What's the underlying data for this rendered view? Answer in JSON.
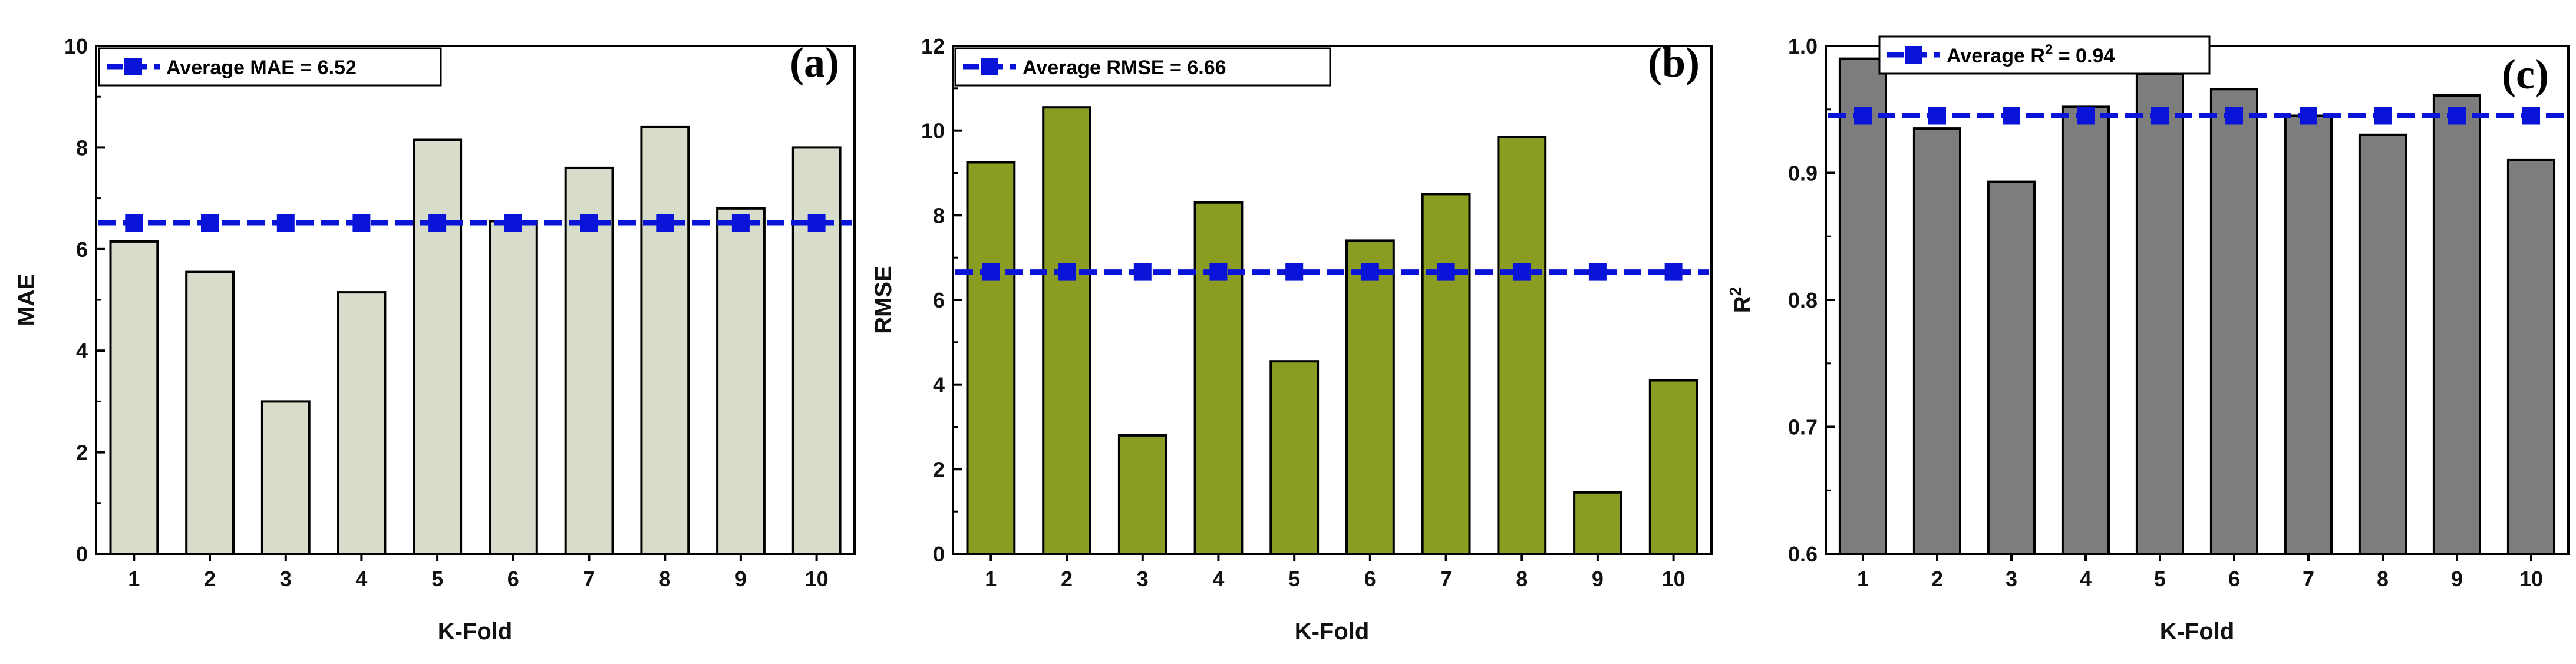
{
  "chart_data": [
    {
      "type": "bar",
      "panel_label": "(a)",
      "categories": [
        "1",
        "2",
        "3",
        "4",
        "5",
        "6",
        "7",
        "8",
        "9",
        "10"
      ],
      "values": [
        6.15,
        5.55,
        3.0,
        5.15,
        8.15,
        6.55,
        7.6,
        8.4,
        6.8,
        8.0
      ],
      "bar_color": "#d8dccb",
      "average": {
        "value": 6.52,
        "legend_text": "Average MAE = 6.52",
        "color": "#0a14d8"
      },
      "xlabel": "K-Fold",
      "ylabel": "MAE",
      "ylim": [
        0,
        10
      ],
      "yticks": [
        "0",
        "2",
        "4",
        "6",
        "8",
        "10"
      ],
      "legend_position": "top-left",
      "grid": false
    },
    {
      "type": "bar",
      "panel_label": "(b)",
      "categories": [
        "1",
        "2",
        "3",
        "4",
        "5",
        "6",
        "7",
        "8",
        "9",
        "10"
      ],
      "values": [
        9.25,
        10.55,
        2.8,
        8.3,
        4.55,
        7.4,
        8.5,
        9.85,
        1.45,
        4.1
      ],
      "bar_color": "#8a9c22",
      "average": {
        "value": 6.66,
        "legend_text": "Average RMSE = 6.66",
        "color": "#0a14d8"
      },
      "xlabel": "K-Fold",
      "ylabel": "RMSE",
      "ylim": [
        0,
        12
      ],
      "yticks": [
        "0",
        "2",
        "4",
        "6",
        "8",
        "10",
        "12"
      ],
      "legend_position": "top-left",
      "grid": false
    },
    {
      "type": "bar",
      "panel_label": "(c)",
      "categories": [
        "1",
        "2",
        "3",
        "4",
        "5",
        "6",
        "7",
        "8",
        "9",
        "10"
      ],
      "values": [
        0.99,
        0.935,
        0.893,
        0.952,
        0.978,
        0.966,
        0.945,
        0.93,
        0.961,
        0.91
      ],
      "bar_color": "#7d7d7d",
      "average": {
        "value": 0.945,
        "legend_text_main": "Average R",
        "legend_text_sup": "2",
        "legend_text_tail": " = 0.94",
        "color": "#0a14d8"
      },
      "xlabel": "K-Fold",
      "ylabel": "R",
      "ylabel_sup": "2",
      "ylim": [
        0.6,
        1.0
      ],
      "yticks": [
        "0.6",
        "0.7",
        "0.8",
        "0.9",
        "1.0"
      ],
      "legend_position": "top-left",
      "grid": false
    }
  ]
}
